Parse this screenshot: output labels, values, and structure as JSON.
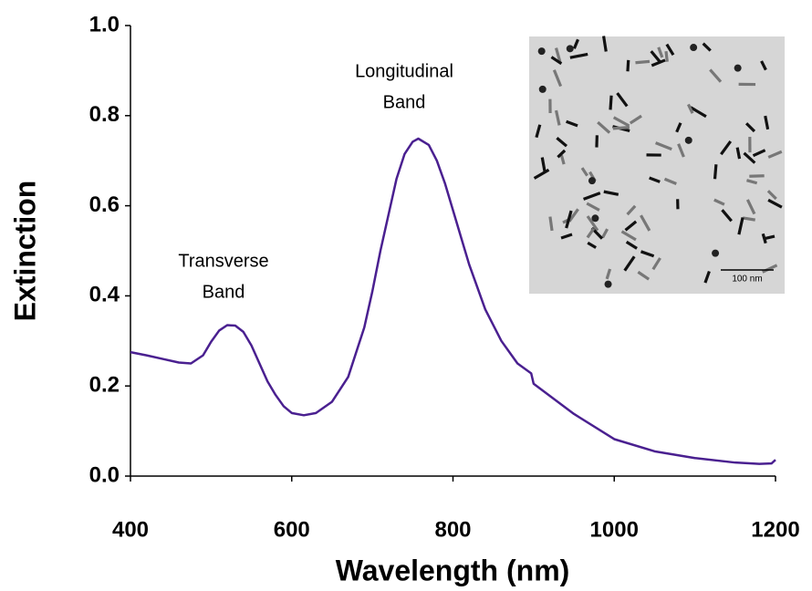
{
  "chart_data": {
    "type": "line",
    "x_label": "Wavelength (nm)",
    "y_label": "Extinction",
    "x": [
      400,
      420,
      440,
      460,
      475,
      490,
      500,
      510,
      520,
      530,
      540,
      550,
      560,
      570,
      580,
      590,
      600,
      615,
      630,
      650,
      670,
      690,
      700,
      710,
      720,
      730,
      740,
      750,
      757,
      770,
      780,
      790,
      800,
      820,
      840,
      860,
      880,
      897,
      900,
      950,
      1000,
      1050,
      1100,
      1150,
      1180,
      1195,
      1200
    ],
    "series": [
      {
        "name": "Extinction",
        "color": "#4a2090",
        "values": [
          0.275,
          0.268,
          0.26,
          0.252,
          0.25,
          0.268,
          0.298,
          0.323,
          0.335,
          0.334,
          0.32,
          0.29,
          0.25,
          0.21,
          0.18,
          0.155,
          0.14,
          0.135,
          0.14,
          0.165,
          0.22,
          0.33,
          0.41,
          0.5,
          0.58,
          0.66,
          0.715,
          0.742,
          0.749,
          0.735,
          0.7,
          0.65,
          0.59,
          0.47,
          0.37,
          0.3,
          0.25,
          0.228,
          0.205,
          0.138,
          0.082,
          0.055,
          0.04,
          0.03,
          0.027,
          0.028,
          0.036
        ]
      }
    ],
    "xlim": [
      400,
      1200
    ],
    "xticks": [
      400,
      600,
      800,
      1000,
      1200
    ],
    "ylim": [
      0,
      1
    ],
    "yticks": [
      {
        "value": 0,
        "label": "0.0"
      },
      0.2,
      0.4,
      0.6,
      0.8,
      {
        "value": 1,
        "label": "1.0"
      }
    ],
    "annotations": [
      {
        "lines": [
          "Transverse",
          "Band"
        ]
      },
      {
        "lines": [
          "Longitudinal",
          "Band"
        ]
      }
    ],
    "inset_scale_label": "100 nm"
  }
}
